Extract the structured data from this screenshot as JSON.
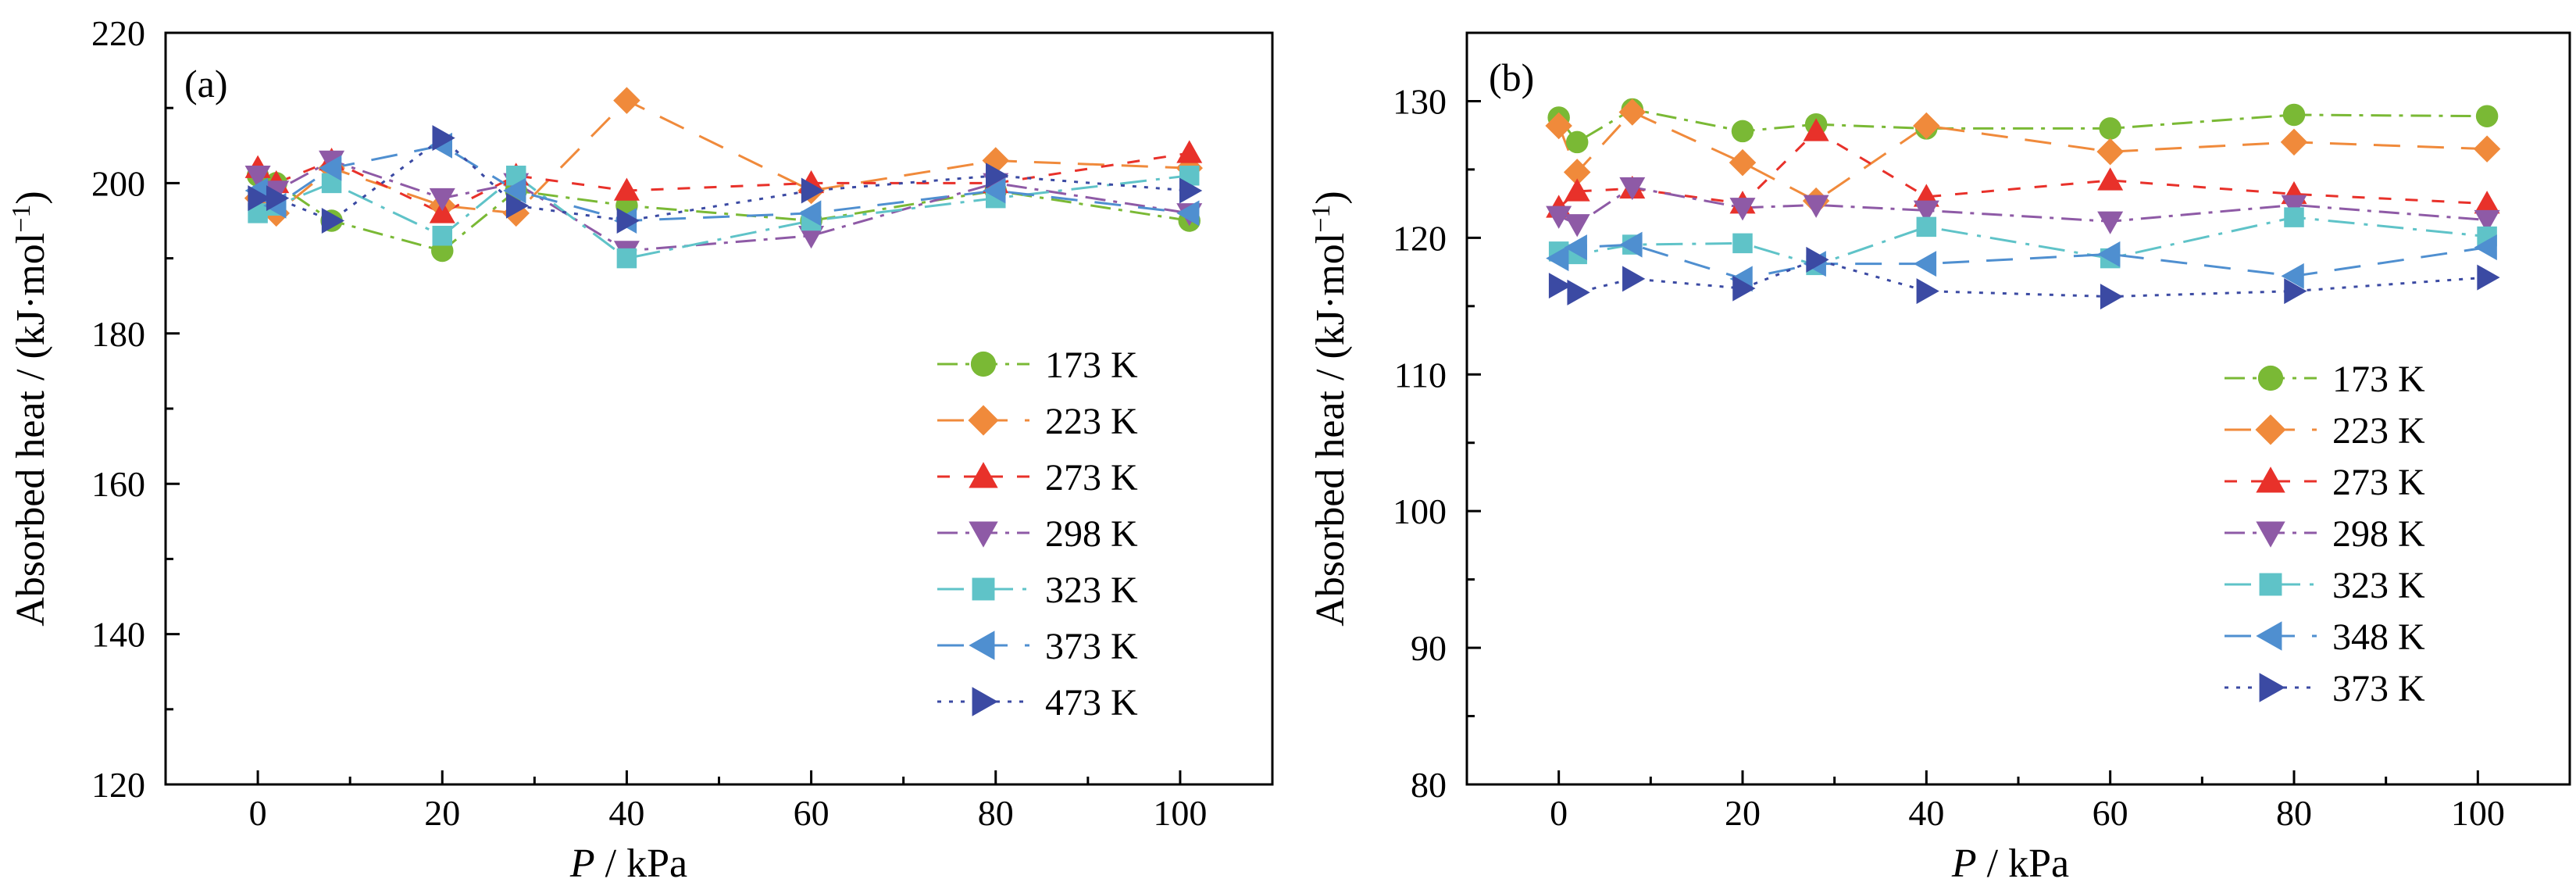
{
  "chart_data": [
    {
      "type": "line",
      "panel_label": "(a)",
      "xlabel_var": "P",
      "xlabel_unit": " / kPa",
      "ylabel": "Absorbed heat / (kJ·mol",
      "ylabel_sup": "−1",
      "ylabel_end": ")",
      "xlim": [
        -10,
        110
      ],
      "ylim": [
        120,
        220
      ],
      "xticks": [
        0,
        20,
        40,
        60,
        80,
        100
      ],
      "yticks": [
        120,
        140,
        160,
        180,
        200,
        220
      ],
      "legend_position": "right",
      "series": [
        {
          "name": "173 K",
          "color": "#7ab935",
          "dash": "dashdot",
          "marker": "circle",
          "x": [
            0,
            2,
            8,
            20,
            28,
            40,
            60,
            80,
            101
          ],
          "y": [
            201,
            200,
            195,
            191,
            199,
            197,
            195,
            199,
            195
          ]
        },
        {
          "name": "223 K",
          "color": "#f08a3b",
          "dash": "longdash",
          "marker": "diamond",
          "x": [
            0,
            2,
            8,
            20,
            28,
            40,
            60,
            80,
            101
          ],
          "y": [
            198,
            196,
            202,
            197,
            196,
            211,
            199,
            203,
            202
          ]
        },
        {
          "name": "273 K",
          "color": "#e8312a",
          "dash": "dash",
          "marker": "triangle-up",
          "x": [
            0,
            2,
            8,
            20,
            28,
            40,
            60,
            80,
            101
          ],
          "y": [
            202,
            200,
            203,
            196,
            201,
            199,
            200,
            200,
            204
          ]
        },
        {
          "name": "298 K",
          "color": "#8e5aa6",
          "dash": "dashdot",
          "marker": "triangle-down",
          "x": [
            0,
            2,
            8,
            20,
            28,
            40,
            60,
            80,
            101
          ],
          "y": [
            201,
            199,
            203,
            198,
            200,
            191,
            193,
            200,
            196
          ]
        },
        {
          "name": "323 K",
          "color": "#5fc3c8",
          "dash": "longdashdot",
          "marker": "square",
          "x": [
            0,
            2,
            8,
            20,
            28,
            40,
            60,
            80,
            101
          ],
          "y": [
            196,
            197,
            200,
            193,
            201,
            190,
            195,
            198,
            201
          ]
        },
        {
          "name": "373 K",
          "color": "#4f8fd0",
          "dash": "longdash",
          "marker": "triangle-left",
          "x": [
            0,
            2,
            8,
            20,
            28,
            40,
            60,
            80,
            101
          ],
          "y": [
            199,
            197,
            202,
            205,
            199,
            195,
            196,
            199,
            196
          ]
        },
        {
          "name": "473 K",
          "color": "#3b4aa3",
          "dash": "dot",
          "marker": "triangle-right",
          "x": [
            0,
            2,
            8,
            20,
            28,
            40,
            60,
            80,
            101
          ],
          "y": [
            198,
            198,
            195,
            206,
            197,
            195,
            199,
            201,
            199
          ]
        }
      ]
    },
    {
      "type": "line",
      "panel_label": "(b)",
      "xlabel_var": "P",
      "xlabel_unit": " / kPa",
      "ylabel": "Absorbed heat / (kJ·mol",
      "ylabel_sup": "−1",
      "ylabel_end": ")",
      "xlim": [
        -10,
        110
      ],
      "ylim": [
        80,
        135
      ],
      "xticks": [
        0,
        20,
        40,
        60,
        80,
        100
      ],
      "yticks": [
        80,
        90,
        100,
        110,
        120,
        130
      ],
      "legend_position": "right",
      "series": [
        {
          "name": "173 K",
          "color": "#7ab935",
          "dash": "dashdot",
          "marker": "circle",
          "x": [
            0,
            2,
            8,
            20,
            28,
            40,
            60,
            80,
            101
          ],
          "y": [
            128.8,
            127,
            129.4,
            127.8,
            128.3,
            128,
            128,
            129,
            128.9
          ]
        },
        {
          "name": "223 K",
          "color": "#f08a3b",
          "dash": "longdash",
          "marker": "diamond",
          "x": [
            0,
            2,
            8,
            20,
            28,
            40,
            60,
            80,
            101
          ],
          "y": [
            128.2,
            124.8,
            129.2,
            125.5,
            122.7,
            128.2,
            126.3,
            127,
            126.5
          ]
        },
        {
          "name": "273 K",
          "color": "#e8312a",
          "dash": "dash",
          "marker": "triangle-up",
          "x": [
            0,
            2,
            8,
            20,
            28,
            40,
            60,
            80,
            101
          ],
          "y": [
            122.2,
            123.4,
            123.6,
            122.5,
            127.8,
            123,
            124.2,
            123.2,
            122.5
          ]
        },
        {
          "name": "298 K",
          "color": "#8e5aa6",
          "dash": "dashdot",
          "marker": "triangle-down",
          "x": [
            0,
            2,
            8,
            20,
            28,
            40,
            60,
            80,
            101
          ],
          "y": [
            121.6,
            121,
            123.7,
            122.2,
            122.4,
            122,
            121.2,
            122.4,
            121.3
          ]
        },
        {
          "name": "323 K",
          "color": "#5fc3c8",
          "dash": "longdashdot",
          "marker": "square",
          "x": [
            0,
            2,
            8,
            20,
            28,
            40,
            60,
            80,
            101
          ],
          "y": [
            119,
            118.8,
            119.5,
            119.6,
            118,
            120.8,
            118.5,
            121.5,
            120.1
          ]
        },
        {
          "name": "348 K",
          "color": "#4f8fd0",
          "dash": "longdash",
          "marker": "triangle-left",
          "x": [
            0,
            2,
            8,
            20,
            28,
            40,
            60,
            80,
            101
          ],
          "y": [
            118.5,
            119.3,
            119.5,
            117,
            118.1,
            118.1,
            118.8,
            117.2,
            119.3
          ]
        },
        {
          "name": "373 K",
          "color": "#3b4aa3",
          "dash": "dot",
          "marker": "triangle-right",
          "x": [
            0,
            2,
            8,
            20,
            28,
            40,
            60,
            80,
            101
          ],
          "y": [
            116.5,
            116,
            117,
            116.3,
            118.4,
            116.1,
            115.7,
            116.1,
            117.1
          ]
        }
      ]
    }
  ]
}
